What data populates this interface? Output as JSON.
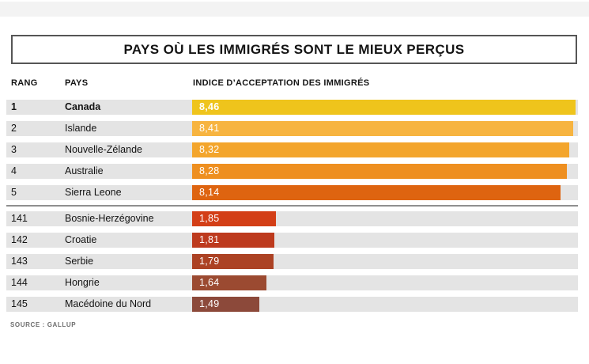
{
  "title": "PAYS OÙ LES IMMIGRÉS SONT LE MIEUX PERÇUS",
  "columns": {
    "rank": "RANG",
    "country": "PAYS",
    "value": "INDICE D’ACCEPTATION DES IMMIGRÉS"
  },
  "source": "SOURCE : GALLUP",
  "chart_data": {
    "type": "bar",
    "orientation": "horizontal",
    "title": "PAYS OÙ LES IMMIGRÉS SONT LE MIEUX PERÇUS",
    "value_axis_label": "INDICE D’ACCEPTATION DES IMMIGRÉS",
    "xlim": [
      0,
      8.5
    ],
    "decimal_separator": ",",
    "track_color": "#e4e4e4",
    "groups": [
      {
        "id": "top-5",
        "rows": [
          {
            "rank": "1",
            "country": "Canada",
            "value": 8.46,
            "display_value": "8,46",
            "bar_color": "#efc41c",
            "emphasis": true
          },
          {
            "rank": "2",
            "country": "Islande",
            "value": 8.41,
            "display_value": "8,41",
            "bar_color": "#f7b440",
            "emphasis": false
          },
          {
            "rank": "3",
            "country": "Nouvelle-Zélande",
            "value": 8.32,
            "display_value": "8,32",
            "bar_color": "#f3a52c",
            "emphasis": false
          },
          {
            "rank": "4",
            "country": "Australie",
            "value": 8.28,
            "display_value": "8,28",
            "bar_color": "#ee8f20",
            "emphasis": false
          },
          {
            "rank": "5",
            "country": "Sierra Leone",
            "value": 8.14,
            "display_value": "8,14",
            "bar_color": "#de6410",
            "emphasis": false
          }
        ]
      },
      {
        "id": "bottom-5",
        "rows": [
          {
            "rank": "141",
            "country": "Bosnie-Herzégovine",
            "value": 1.85,
            "display_value": "1,85",
            "bar_color": "#d33e16",
            "emphasis": false
          },
          {
            "rank": "142",
            "country": "Croatie",
            "value": 1.81,
            "display_value": "1,81",
            "bar_color": "#bd3a1d",
            "emphasis": false
          },
          {
            "rank": "143",
            "country": "Serbie",
            "value": 1.79,
            "display_value": "1,79",
            "bar_color": "#ac4224",
            "emphasis": false
          },
          {
            "rank": "144",
            "country": "Hongrie",
            "value": 1.64,
            "display_value": "1,64",
            "bar_color": "#9b4a31",
            "emphasis": false
          },
          {
            "rank": "145",
            "country": "Macédoine du Nord",
            "value": 1.49,
            "display_value": "1,49",
            "bar_color": "#8c493a",
            "emphasis": false
          }
        ]
      }
    ],
    "source": "SOURCE : GALLUP"
  }
}
